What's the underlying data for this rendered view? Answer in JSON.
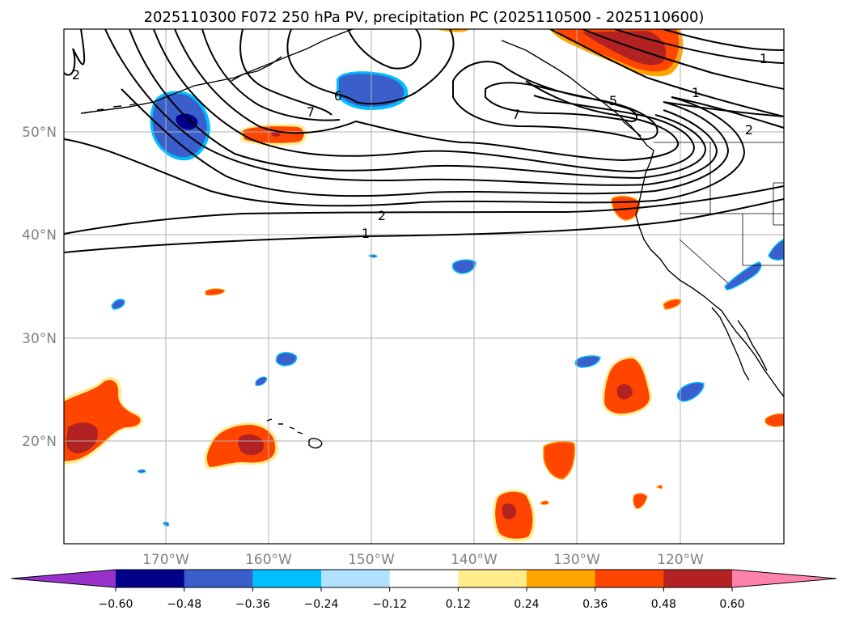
{
  "title": "2025110300 F072 250 hPa PV, precipitation PC (2025110500 - 2025110600)",
  "map": {
    "lon_range": [
      -180,
      -110
    ],
    "lat_range": [
      10,
      60
    ],
    "lon_ticks": [
      {
        "value": -170,
        "label": "170°W"
      },
      {
        "value": -160,
        "label": "160°W"
      },
      {
        "value": -150,
        "label": "150°W"
      },
      {
        "value": -140,
        "label": "140°W"
      },
      {
        "value": -130,
        "label": "130°W"
      },
      {
        "value": -120,
        "label": "120°W"
      }
    ],
    "lat_ticks": [
      {
        "value": 50,
        "label": "50°N"
      },
      {
        "value": 40,
        "label": "40°N"
      },
      {
        "value": 30,
        "label": "30°N"
      },
      {
        "value": 20,
        "label": "20°N"
      }
    ],
    "contour_labels": [
      "2",
      "7",
      "6",
      "7",
      "5",
      "1",
      "1",
      "2",
      "2",
      "1"
    ]
  },
  "colorbar": {
    "ticks": [
      "−0.60",
      "−0.48",
      "−0.36",
      "−0.24",
      "−0.12",
      "0.12",
      "0.24",
      "0.36",
      "0.48",
      "0.60"
    ],
    "colors": [
      "#9932cc",
      "#00008b",
      "#3a5fcd",
      "#00bfff",
      "#b0e2ff",
      "#ffffff",
      "#ffec8b",
      "#ffa500",
      "#ff4500",
      "#b22222",
      "#ff82ab"
    ]
  },
  "colors": {
    "dark_red": "#b22222",
    "orange_red": "#ff4500",
    "orange": "#ffa500",
    "light_yellow": "#ffec8b",
    "navy": "#00008b",
    "royal_blue": "#3a5fcd",
    "sky_blue": "#00bfff",
    "light_blue": "#b0e2ff",
    "grid": "#b0b0b0"
  }
}
